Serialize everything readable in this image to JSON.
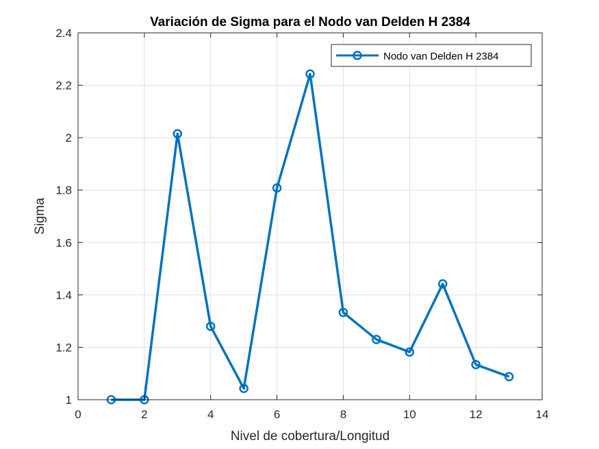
{
  "chart_data": {
    "type": "line",
    "title": "Variación de Sigma para el Nodo van Delden H 2384",
    "xlabel": "Nivel de cobertura/Longitud",
    "ylabel": "Sigma",
    "xlim": [
      0,
      14
    ],
    "ylim": [
      1,
      2.4
    ],
    "xticks": [
      0,
      2,
      4,
      6,
      8,
      10,
      12,
      14
    ],
    "yticks": [
      1,
      1.2,
      1.4,
      1.6,
      1.8,
      2,
      2.2,
      2.4
    ],
    "xtick_labels": [
      "0",
      "2",
      "4",
      "6",
      "8",
      "10",
      "12",
      "14"
    ],
    "ytick_labels": [
      "1",
      "1.2",
      "1.4",
      "1.6",
      "1.8",
      "2",
      "2.2",
      "2.4"
    ],
    "grid": true,
    "legend_position": "top-right",
    "series": [
      {
        "name": "Nodo van Delden H 2384",
        "color": "#0072BD",
        "marker": "circle",
        "x": [
          1,
          2,
          3,
          4,
          5,
          6,
          7,
          8,
          9,
          10,
          11,
          12,
          13
        ],
        "y": [
          1.0,
          1.0,
          2.015,
          1.28,
          1.043,
          1.808,
          2.243,
          1.333,
          1.23,
          1.182,
          1.442,
          1.134,
          1.088
        ]
      }
    ]
  }
}
